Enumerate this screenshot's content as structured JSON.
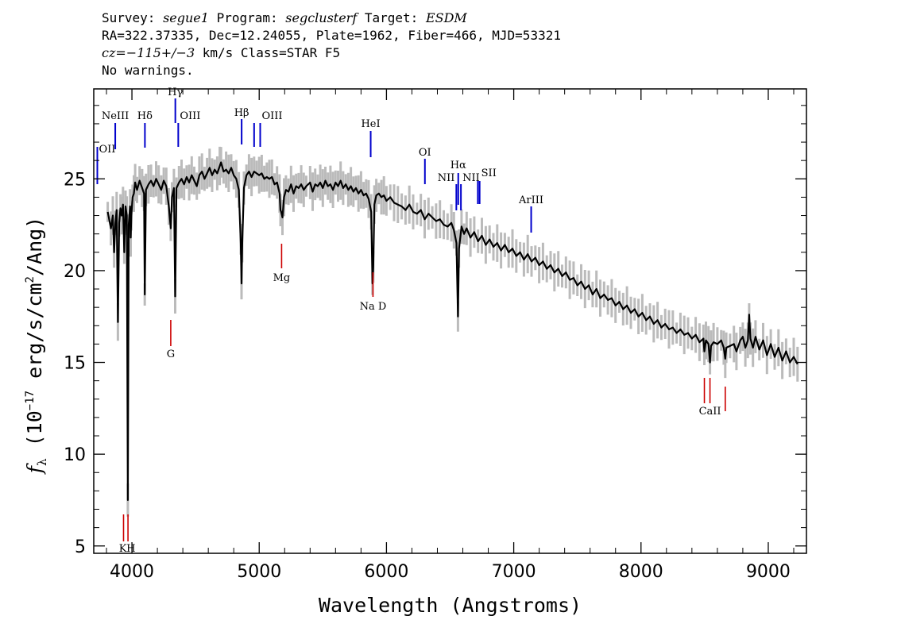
{
  "header": {
    "line1": [
      {
        "text": "Survey: ",
        "italic": false
      },
      {
        "text": "segue1",
        "italic": true
      },
      {
        "text": " Program: ",
        "italic": false
      },
      {
        "text": "segclusterf",
        "italic": true
      },
      {
        "text": " Target: ",
        "italic": false
      },
      {
        "text": "ESDM",
        "italic": true
      }
    ],
    "line2": "RA=322.37335, Dec=12.24055, Plate=1962, Fiber=466, MJD=53321",
    "line3": [
      {
        "text": "cz=−115+/−3",
        "italic": true
      },
      {
        "text": " km/s Class=STAR F5",
        "italic": false
      }
    ],
    "line4": "No warnings."
  },
  "chart_data": {
    "type": "line",
    "title": "",
    "xlabel": "Wavelength (Angstroms)",
    "ylabel_parts": [
      "f",
      "λ",
      " (10",
      "−17",
      " erg/s/cm",
      "2",
      "/Ang)"
    ],
    "xlim": [
      3700,
      9300
    ],
    "ylim": [
      4.6,
      29.9
    ],
    "xticks": [
      4000,
      5000,
      6000,
      7000,
      8000,
      9000
    ],
    "yticks": [
      5,
      10,
      15,
      20,
      25
    ],
    "grid": false,
    "colors": {
      "spectrum": "#000000",
      "error": "#bbbbbb",
      "emission": "#0000cc",
      "absorption": "#cc0000"
    },
    "series": [
      {
        "points": [
          [
            3810,
            23.2
          ],
          [
            3835,
            22.3
          ],
          [
            3850,
            23.0
          ],
          [
            3860,
            21.0
          ],
          [
            3870,
            22.6
          ],
          [
            3880,
            23.3
          ],
          [
            3890,
            17.2
          ],
          [
            3900,
            22.6
          ],
          [
            3910,
            23.4
          ],
          [
            3920,
            23.0
          ],
          [
            3930,
            23.6
          ],
          [
            3940,
            21.0
          ],
          [
            3950,
            23.5
          ],
          [
            3960,
            23.0
          ],
          [
            3968,
            7.5
          ],
          [
            3975,
            22.5
          ],
          [
            3985,
            23.5
          ],
          [
            3990,
            21.8
          ],
          [
            3995,
            23.0
          ],
          [
            4005,
            24.0
          ],
          [
            4015,
            24.2
          ],
          [
            4025,
            24.8
          ],
          [
            4040,
            24.4
          ],
          [
            4060,
            24.9
          ],
          [
            4080,
            24.5
          ],
          [
            4095,
            24.2
          ],
          [
            4101,
            18.7
          ],
          [
            4110,
            24.4
          ],
          [
            4130,
            24.7
          ],
          [
            4150,
            24.9
          ],
          [
            4170,
            24.6
          ],
          [
            4190,
            25.0
          ],
          [
            4210,
            24.7
          ],
          [
            4230,
            24.4
          ],
          [
            4250,
            24.9
          ],
          [
            4270,
            24.6
          ],
          [
            4290,
            23.5
          ],
          [
            4305,
            22.3
          ],
          [
            4315,
            24.0
          ],
          [
            4330,
            24.5
          ],
          [
            4340,
            18.6
          ],
          [
            4350,
            24.5
          ],
          [
            4370,
            24.8
          ],
          [
            4390,
            25.0
          ],
          [
            4410,
            24.7
          ],
          [
            4430,
            25.1
          ],
          [
            4450,
            24.8
          ],
          [
            4470,
            25.2
          ],
          [
            4490,
            24.9
          ],
          [
            4510,
            24.6
          ],
          [
            4530,
            25.2
          ],
          [
            4550,
            25.4
          ],
          [
            4570,
            25.0
          ],
          [
            4590,
            25.3
          ],
          [
            4610,
            25.6
          ],
          [
            4630,
            25.2
          ],
          [
            4650,
            25.5
          ],
          [
            4670,
            25.3
          ],
          [
            4690,
            25.7
          ],
          [
            4700,
            25.9
          ],
          [
            4720,
            25.4
          ],
          [
            4740,
            25.5
          ],
          [
            4760,
            25.3
          ],
          [
            4780,
            25.6
          ],
          [
            4800,
            25.2
          ],
          [
            4820,
            25.0
          ],
          [
            4840,
            24.4
          ],
          [
            4855,
            21.5
          ],
          [
            4861,
            19.3
          ],
          [
            4867,
            21.5
          ],
          [
            4880,
            24.5
          ],
          [
            4900,
            25.2
          ],
          [
            4920,
            25.4
          ],
          [
            4940,
            25.1
          ],
          [
            4960,
            25.4
          ],
          [
            4980,
            25.3
          ],
          [
            5000,
            25.2
          ],
          [
            5020,
            25.3
          ],
          [
            5040,
            25.0
          ],
          [
            5060,
            25.1
          ],
          [
            5080,
            25.0
          ],
          [
            5100,
            25.1
          ],
          [
            5120,
            24.7
          ],
          [
            5140,
            24.8
          ],
          [
            5160,
            24.2
          ],
          [
            5167,
            23.3
          ],
          [
            5173,
            23.2
          ],
          [
            5183,
            22.9
          ],
          [
            5195,
            24.0
          ],
          [
            5210,
            24.4
          ],
          [
            5230,
            24.3
          ],
          [
            5250,
            24.7
          ],
          [
            5270,
            24.2
          ],
          [
            5290,
            24.6
          ],
          [
            5310,
            24.5
          ],
          [
            5330,
            24.7
          ],
          [
            5350,
            24.4
          ],
          [
            5370,
            24.6
          ],
          [
            5400,
            24.8
          ],
          [
            5420,
            24.3
          ],
          [
            5440,
            24.7
          ],
          [
            5460,
            24.6
          ],
          [
            5480,
            24.8
          ],
          [
            5500,
            24.5
          ],
          [
            5520,
            24.9
          ],
          [
            5540,
            24.6
          ],
          [
            5560,
            24.7
          ],
          [
            5580,
            24.4
          ],
          [
            5600,
            24.8
          ],
          [
            5620,
            24.6
          ],
          [
            5640,
            24.9
          ],
          [
            5660,
            24.5
          ],
          [
            5680,
            24.7
          ],
          [
            5700,
            24.4
          ],
          [
            5720,
            24.6
          ],
          [
            5740,
            24.3
          ],
          [
            5760,
            24.5
          ],
          [
            5780,
            24.2
          ],
          [
            5800,
            24.4
          ],
          [
            5820,
            24.1
          ],
          [
            5840,
            24.2
          ],
          [
            5860,
            23.9
          ],
          [
            5880,
            23.2
          ],
          [
            5890,
            19.3
          ],
          [
            5896,
            20.2
          ],
          [
            5905,
            23.6
          ],
          [
            5920,
            24.1
          ],
          [
            5940,
            24.2
          ],
          [
            5960,
            24.0
          ],
          [
            5980,
            24.1
          ],
          [
            6000,
            23.8
          ],
          [
            6030,
            24.0
          ],
          [
            6060,
            23.7
          ],
          [
            6090,
            23.6
          ],
          [
            6120,
            23.5
          ],
          [
            6150,
            23.3
          ],
          [
            6180,
            23.6
          ],
          [
            6210,
            23.2
          ],
          [
            6240,
            23.1
          ],
          [
            6270,
            23.3
          ],
          [
            6300,
            22.8
          ],
          [
            6330,
            23.1
          ],
          [
            6360,
            22.9
          ],
          [
            6390,
            22.7
          ],
          [
            6420,
            22.8
          ],
          [
            6450,
            22.5
          ],
          [
            6480,
            22.4
          ],
          [
            6510,
            22.6
          ],
          [
            6530,
            22.2
          ],
          [
            6550,
            21.5
          ],
          [
            6562,
            17.5
          ],
          [
            6570,
            21.2
          ],
          [
            6590,
            22.4
          ],
          [
            6610,
            22.0
          ],
          [
            6630,
            22.3
          ],
          [
            6660,
            21.8
          ],
          [
            6690,
            22.1
          ],
          [
            6720,
            21.6
          ],
          [
            6750,
            21.9
          ],
          [
            6780,
            21.4
          ],
          [
            6810,
            21.7
          ],
          [
            6840,
            21.3
          ],
          [
            6870,
            21.5
          ],
          [
            6900,
            21.1
          ],
          [
            6930,
            21.4
          ],
          [
            6960,
            21.0
          ],
          [
            6990,
            21.2
          ],
          [
            7020,
            20.8
          ],
          [
            7050,
            21.0
          ],
          [
            7080,
            20.6
          ],
          [
            7110,
            20.9
          ],
          [
            7140,
            20.5
          ],
          [
            7170,
            20.7
          ],
          [
            7200,
            20.3
          ],
          [
            7230,
            20.5
          ],
          [
            7260,
            20.1
          ],
          [
            7290,
            20.3
          ],
          [
            7320,
            19.9
          ],
          [
            7350,
            20.1
          ],
          [
            7380,
            19.7
          ],
          [
            7410,
            19.9
          ],
          [
            7440,
            19.5
          ],
          [
            7470,
            19.6
          ],
          [
            7500,
            19.2
          ],
          [
            7530,
            19.4
          ],
          [
            7560,
            19.0
          ],
          [
            7590,
            19.2
          ],
          [
            7620,
            18.7
          ],
          [
            7650,
            19.0
          ],
          [
            7680,
            18.5
          ],
          [
            7710,
            18.7
          ],
          [
            7740,
            18.4
          ],
          [
            7770,
            18.5
          ],
          [
            7800,
            18.1
          ],
          [
            7830,
            18.3
          ],
          [
            7860,
            17.9
          ],
          [
            7890,
            18.1
          ],
          [
            7920,
            17.7
          ],
          [
            7950,
            17.9
          ],
          [
            7980,
            17.5
          ],
          [
            8010,
            17.7
          ],
          [
            8040,
            17.3
          ],
          [
            8070,
            17.5
          ],
          [
            8100,
            17.1
          ],
          [
            8130,
            17.3
          ],
          [
            8160,
            16.9
          ],
          [
            8190,
            17.1
          ],
          [
            8220,
            16.8
          ],
          [
            8250,
            16.9
          ],
          [
            8280,
            16.6
          ],
          [
            8310,
            16.8
          ],
          [
            8340,
            16.5
          ],
          [
            8370,
            16.6
          ],
          [
            8400,
            16.3
          ],
          [
            8430,
            16.5
          ],
          [
            8460,
            16.1
          ],
          [
            8490,
            16.3
          ],
          [
            8498,
            15.6
          ],
          [
            8510,
            16.2
          ],
          [
            8530,
            16.0
          ],
          [
            8542,
            15.0
          ],
          [
            8550,
            15.9
          ],
          [
            8570,
            16.1
          ],
          [
            8600,
            16.0
          ],
          [
            8630,
            16.2
          ],
          [
            8650,
            15.8
          ],
          [
            8662,
            15.2
          ],
          [
            8670,
            15.8
          ],
          [
            8700,
            15.9
          ],
          [
            8730,
            16.0
          ],
          [
            8750,
            15.6
          ],
          [
            8780,
            16.2
          ],
          [
            8800,
            16.4
          ],
          [
            8820,
            15.8
          ],
          [
            8840,
            16.2
          ],
          [
            8850,
            17.6
          ],
          [
            8860,
            16.3
          ],
          [
            8880,
            15.8
          ],
          [
            8900,
            16.4
          ],
          [
            8930,
            15.7
          ],
          [
            8960,
            16.2
          ],
          [
            8990,
            15.4
          ],
          [
            9020,
            16.0
          ],
          [
            9050,
            15.3
          ],
          [
            9080,
            15.8
          ],
          [
            9110,
            15.1
          ],
          [
            9140,
            15.6
          ],
          [
            9170,
            15.0
          ],
          [
            9200,
            15.3
          ],
          [
            9230,
            14.9
          ]
        ]
      }
    ],
    "emission_lines": [
      {
        "name": "OII",
        "wave": 3728
      },
      {
        "name": "NeIII",
        "wave": 3869
      },
      {
        "name": "Hδ",
        "wave": 4102
      },
      {
        "name": "Hγ",
        "wave": 4341
      },
      {
        "name": "OIII",
        "wave": 4364
      },
      {
        "name": "Hβ",
        "wave": 4862
      },
      {
        "name": "OIII",
        "wave": 4960
      },
      {
        "name": "OIII",
        "wave": 5008
      },
      {
        "name": "HeI",
        "wave": 5876
      },
      {
        "name": "OI",
        "wave": 6302
      },
      {
        "name": "NII",
        "wave": 6549
      },
      {
        "name": "Hα",
        "wave": 6564
      },
      {
        "name": "NII",
        "wave": 6585
      },
      {
        "name": "SII",
        "wave": 6718
      },
      {
        "name": "SII",
        "wave": 6732
      },
      {
        "name": "ArIII",
        "wave": 7137
      }
    ],
    "absorption_lines": [
      {
        "name": "K",
        "wave": 3934
      },
      {
        "name": "H",
        "wave": 3969
      },
      {
        "name": "G",
        "wave": 4305
      },
      {
        "name": "Mg",
        "wave": 5176
      },
      {
        "name": "Na D",
        "wave": 5894
      },
      {
        "name": "CaII",
        "wave": 8498
      },
      {
        "name": "CaII",
        "wave": 8542
      },
      {
        "name": "CaII",
        "wave": 8662
      }
    ]
  }
}
